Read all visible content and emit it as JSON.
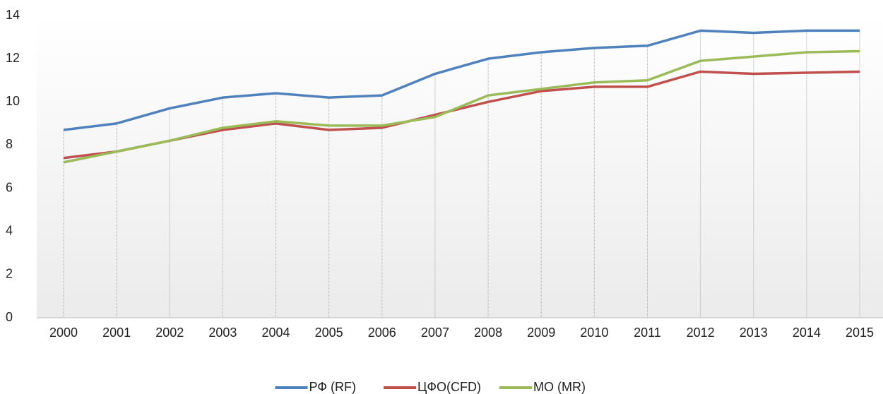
{
  "chart_data": {
    "type": "line",
    "categories": [
      "2000",
      "2001",
      "2002",
      "2003",
      "2004",
      "2005",
      "2006",
      "2007",
      "2008",
      "2009",
      "2010",
      "2011",
      "2012",
      "2013",
      "2014",
      "2015"
    ],
    "series": [
      {
        "name": "РФ (RF)",
        "color": "#4f81bd",
        "values": [
          8.7,
          9.0,
          9.7,
          10.2,
          10.4,
          10.2,
          10.3,
          11.3,
          12.0,
          12.3,
          12.5,
          12.6,
          13.3,
          13.2,
          13.3,
          13.3
        ]
      },
      {
        "name": "ЦФО(CFD)",
        "color": "#c0504d",
        "values": [
          7.4,
          7.7,
          8.2,
          8.7,
          9.0,
          8.7,
          8.8,
          9.4,
          10.0,
          10.5,
          10.7,
          10.7,
          11.4,
          11.3,
          11.35,
          11.4
        ]
      },
      {
        "name": "МО (MR)",
        "color": "#9bbb59",
        "values": [
          7.2,
          7.7,
          8.2,
          8.8,
          9.1,
          8.9,
          8.9,
          9.3,
          10.3,
          10.6,
          10.9,
          11.0,
          11.9,
          12.1,
          12.3,
          12.35
        ]
      }
    ],
    "ylim": [
      0,
      14
    ],
    "yticks": [
      0,
      2,
      4,
      6,
      8,
      10,
      12,
      14
    ],
    "legend": "bottom"
  }
}
